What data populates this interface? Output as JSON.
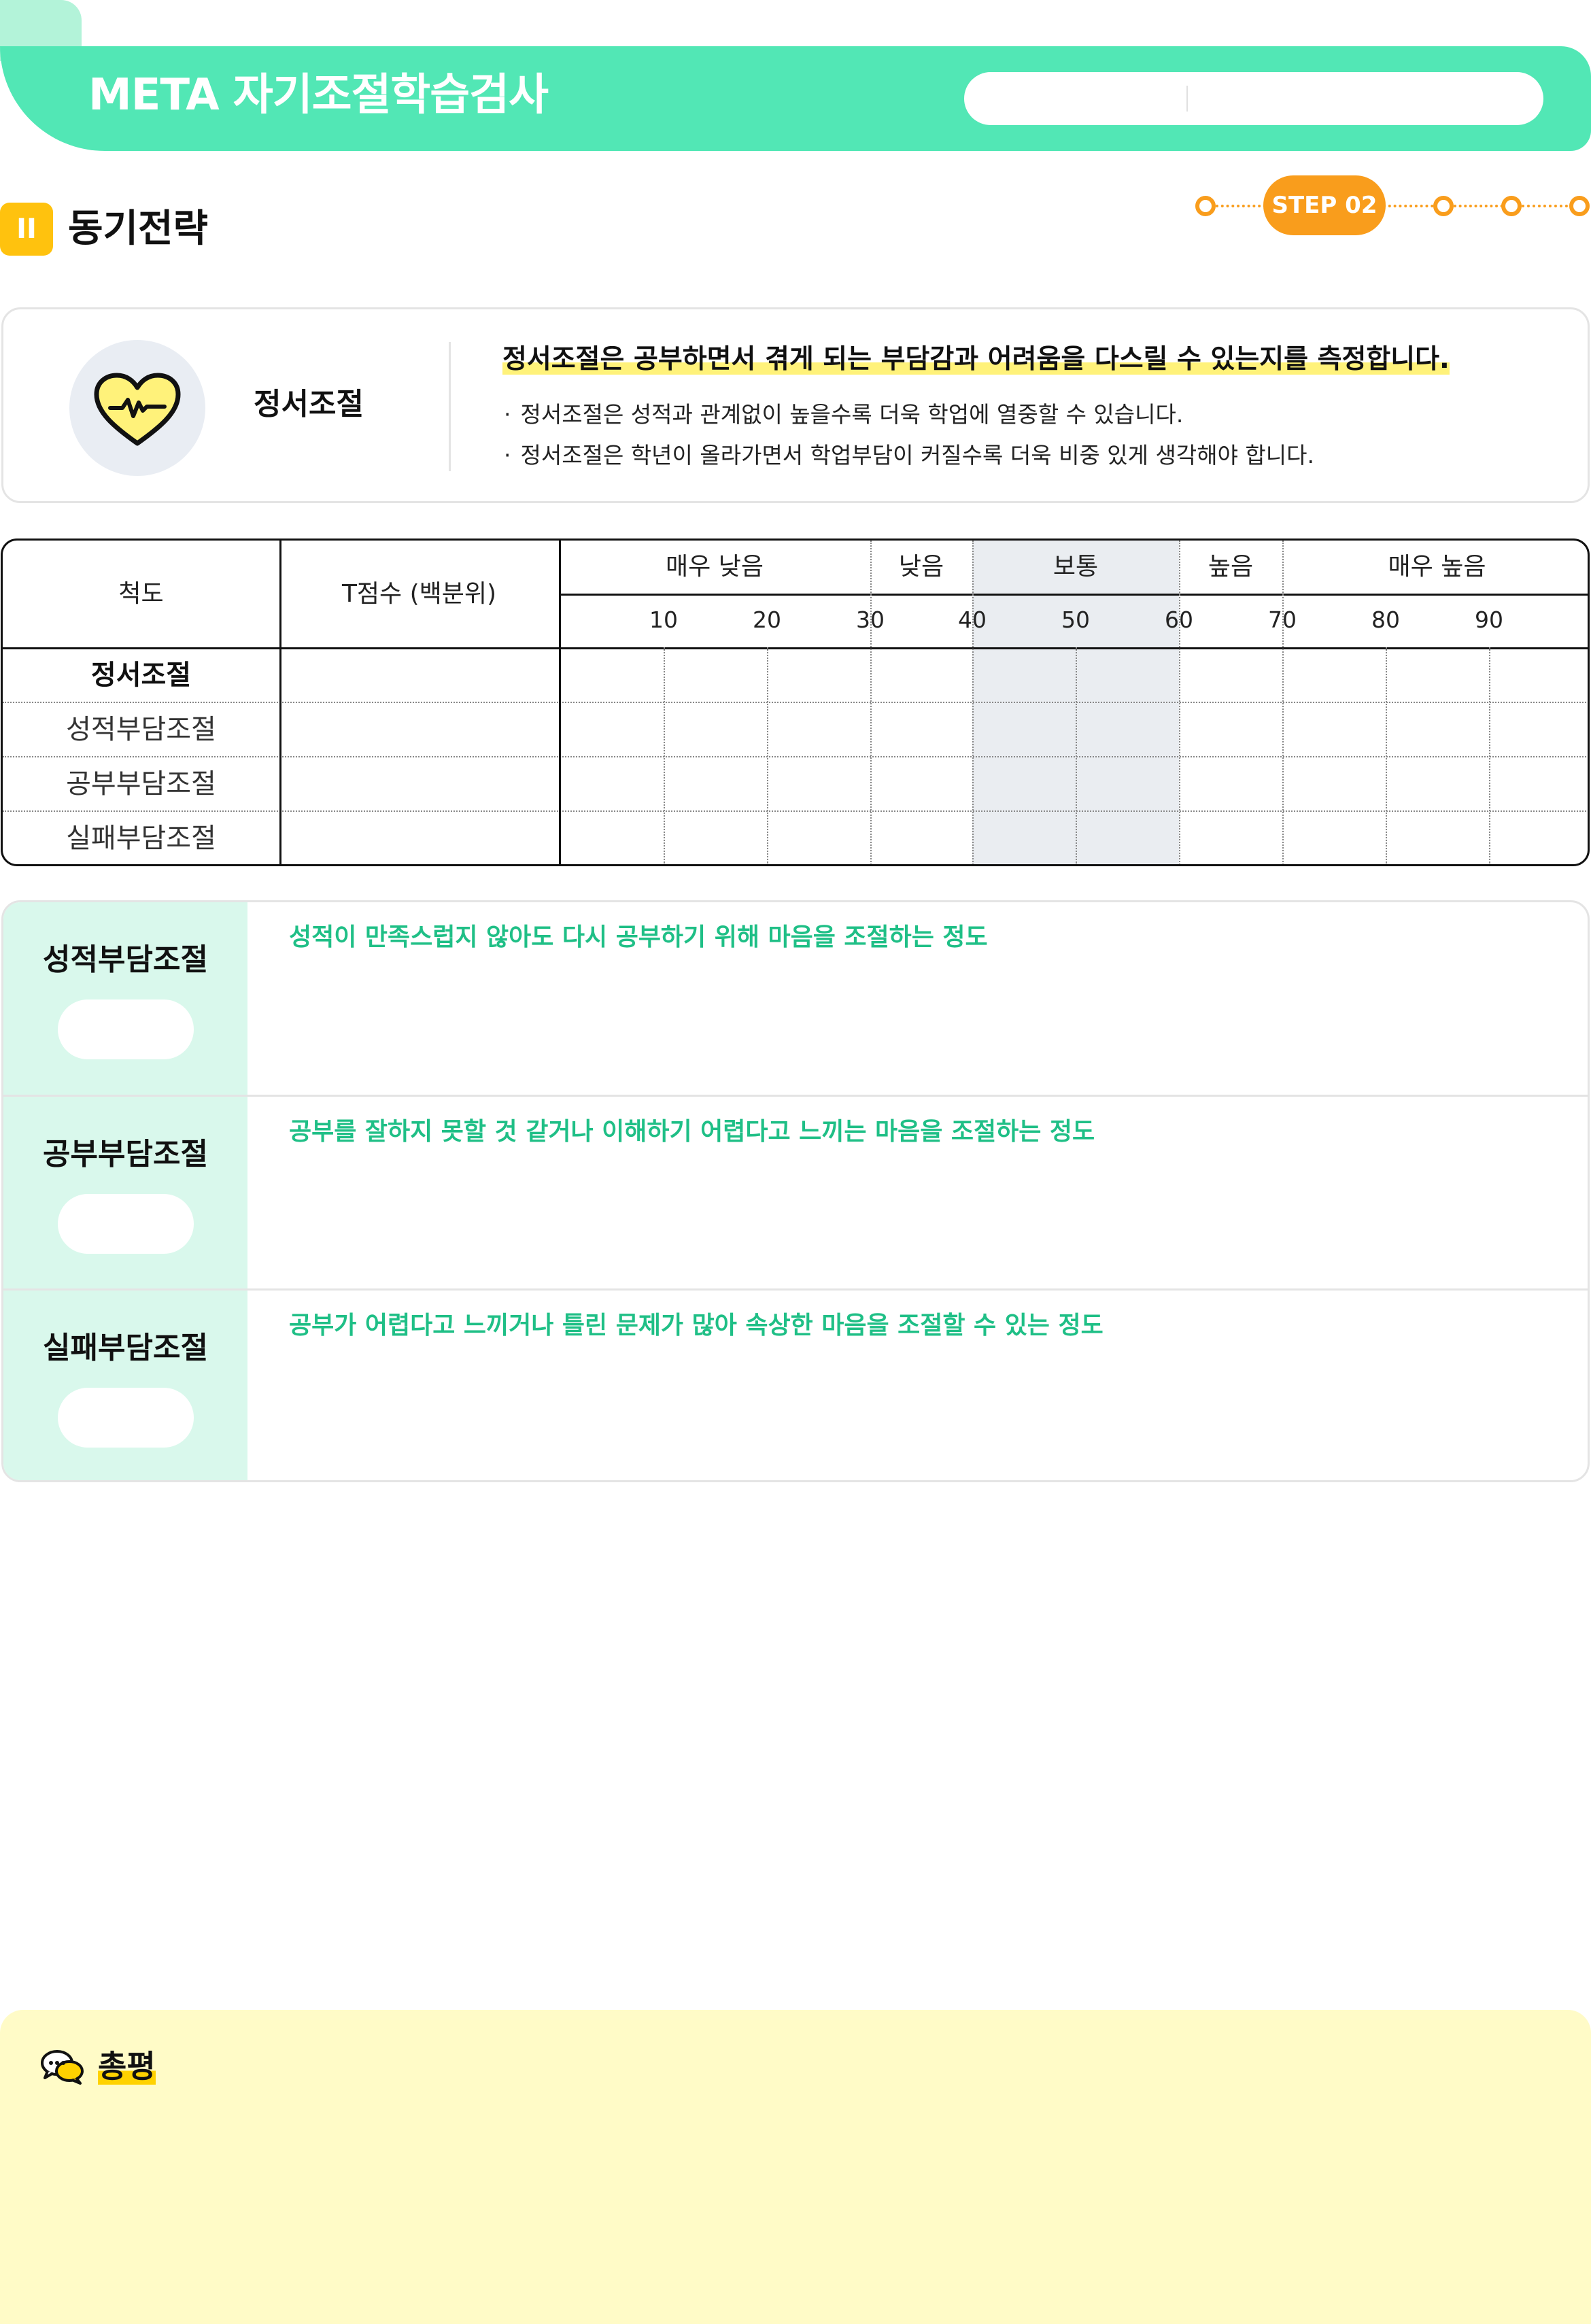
{
  "header": {
    "title": "META 자기조절학습검사"
  },
  "section": {
    "badge": "II",
    "title": "동기전략"
  },
  "step": {
    "label": "STEP 02"
  },
  "intro": {
    "icon": "heart-pulse-icon",
    "label": "정서조절",
    "headline": "정서조절은 공부하면서 겪게 되는 부담감과 어려움을 다스릴 수 있는지를 측정합니다.",
    "bullets": [
      "정서조절은 성적과 관계없이  높을수록 더욱 학업에 열중할 수 있습니다.",
      "정서조절은 학년이 올라가면서 학업부담이 커질수록 더욱 비중 있게 생각해야 합니다."
    ]
  },
  "table": {
    "col_scale": "척도",
    "col_tscore": "T점수 (백분위)",
    "levels": [
      "매우 낮음",
      "낮음",
      "보통",
      "높음",
      "매우 높음"
    ],
    "ticks": [
      "10",
      "20",
      "30",
      "40",
      "50",
      "60",
      "70",
      "80",
      "90"
    ],
    "rows": [
      "정서조절",
      "성적부담조절",
      "공부부담조절",
      "실패부담조절"
    ]
  },
  "subscales": [
    {
      "name": "성적부담조절",
      "desc": "성적이 만족스럽지 않아도 다시 공부하기 위해 마음을 조절하는 정도"
    },
    {
      "name": "공부부담조절",
      "desc": "공부를 잘하지 못할 것 같거나 이해하기 어렵다고 느끼는 마음을 조절하는 정도"
    },
    {
      "name": "실패부담조절",
      "desc": "공부가 어렵다고 느끼거나 틀린 문제가 많아 속상한 마음을 조절할 수 있는 정도"
    }
  ],
  "summary": {
    "icon": "chat-bubbles-icon",
    "title": "총평"
  },
  "colors": {
    "header_green": "#52e7b5",
    "badge_yellow": "#ffc20e",
    "step_orange": "#f99d1c",
    "desc_green": "#1fbf86",
    "summary_bg": "#fffbc7"
  }
}
